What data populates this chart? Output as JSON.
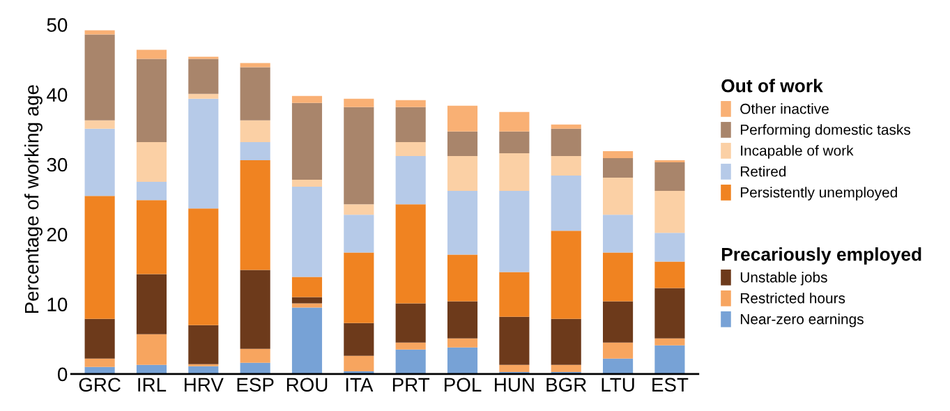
{
  "chart_data": {
    "type": "bar",
    "stacked": true,
    "ylabel": "Percentage of working age",
    "legend_title": "Out of work",
    "annotations": [
      "Precariously employed"
    ],
    "legend": "right",
    "grid": false,
    "categories": [
      "GRC",
      "IRL",
      "HRV",
      "ESP",
      "ROU",
      "ITA",
      "PRT",
      "POL",
      "HUN",
      "BGR",
      "LTU",
      "EST"
    ],
    "ylim": [
      0,
      50
    ],
    "yticks": [
      0,
      10,
      20,
      30,
      40,
      50
    ],
    "series": [
      {
        "name": "Near-zero earnings",
        "color": "#77a2d6",
        "values": [
          1.0,
          1.3,
          1.1,
          1.6,
          9.5,
          0.4,
          3.5,
          3.8,
          0.3,
          0.3,
          2.2,
          4.1
        ]
      },
      {
        "name": "Restricted hours",
        "color": "#f7a55f",
        "values": [
          1.2,
          4.4,
          0.3,
          2.0,
          0.6,
          2.2,
          1.0,
          1.3,
          1.0,
          1.0,
          2.3,
          1.0
        ]
      },
      {
        "name": "Unstable jobs",
        "color": "#6d3a1b",
        "values": [
          5.7,
          8.6,
          5.6,
          11.3,
          0.9,
          4.7,
          5.6,
          5.3,
          6.9,
          6.6,
          5.9,
          7.2
        ]
      },
      {
        "name": "Persistently unemployed",
        "color": "#f08321",
        "values": [
          17.6,
          10.6,
          16.7,
          15.7,
          2.9,
          10.1,
          14.2,
          6.7,
          6.4,
          12.6,
          7.0,
          3.8
        ]
      },
      {
        "name": "Retired",
        "color": "#b6cae8",
        "values": [
          9.6,
          2.6,
          15.7,
          2.6,
          12.9,
          5.4,
          6.9,
          9.1,
          11.6,
          7.9,
          5.4,
          4.1
        ]
      },
      {
        "name": "Incapable of work",
        "color": "#fbd0a5",
        "values": [
          1.2,
          5.7,
          0.7,
          3.1,
          1.0,
          1.5,
          2.0,
          5.0,
          5.4,
          2.8,
          5.3,
          6.0
        ]
      },
      {
        "name": "Performing domestic tasks",
        "color": "#a9856b",
        "values": [
          12.3,
          11.9,
          5.0,
          7.6,
          11.0,
          13.9,
          5.0,
          3.5,
          3.1,
          3.9,
          2.8,
          4.1
        ]
      },
      {
        "name": "Other inactive",
        "color": "#f9b074",
        "values": [
          0.6,
          1.3,
          0.3,
          0.6,
          1.0,
          1.2,
          1.0,
          3.7,
          2.8,
          0.6,
          1.0,
          0.3
        ]
      }
    ]
  }
}
